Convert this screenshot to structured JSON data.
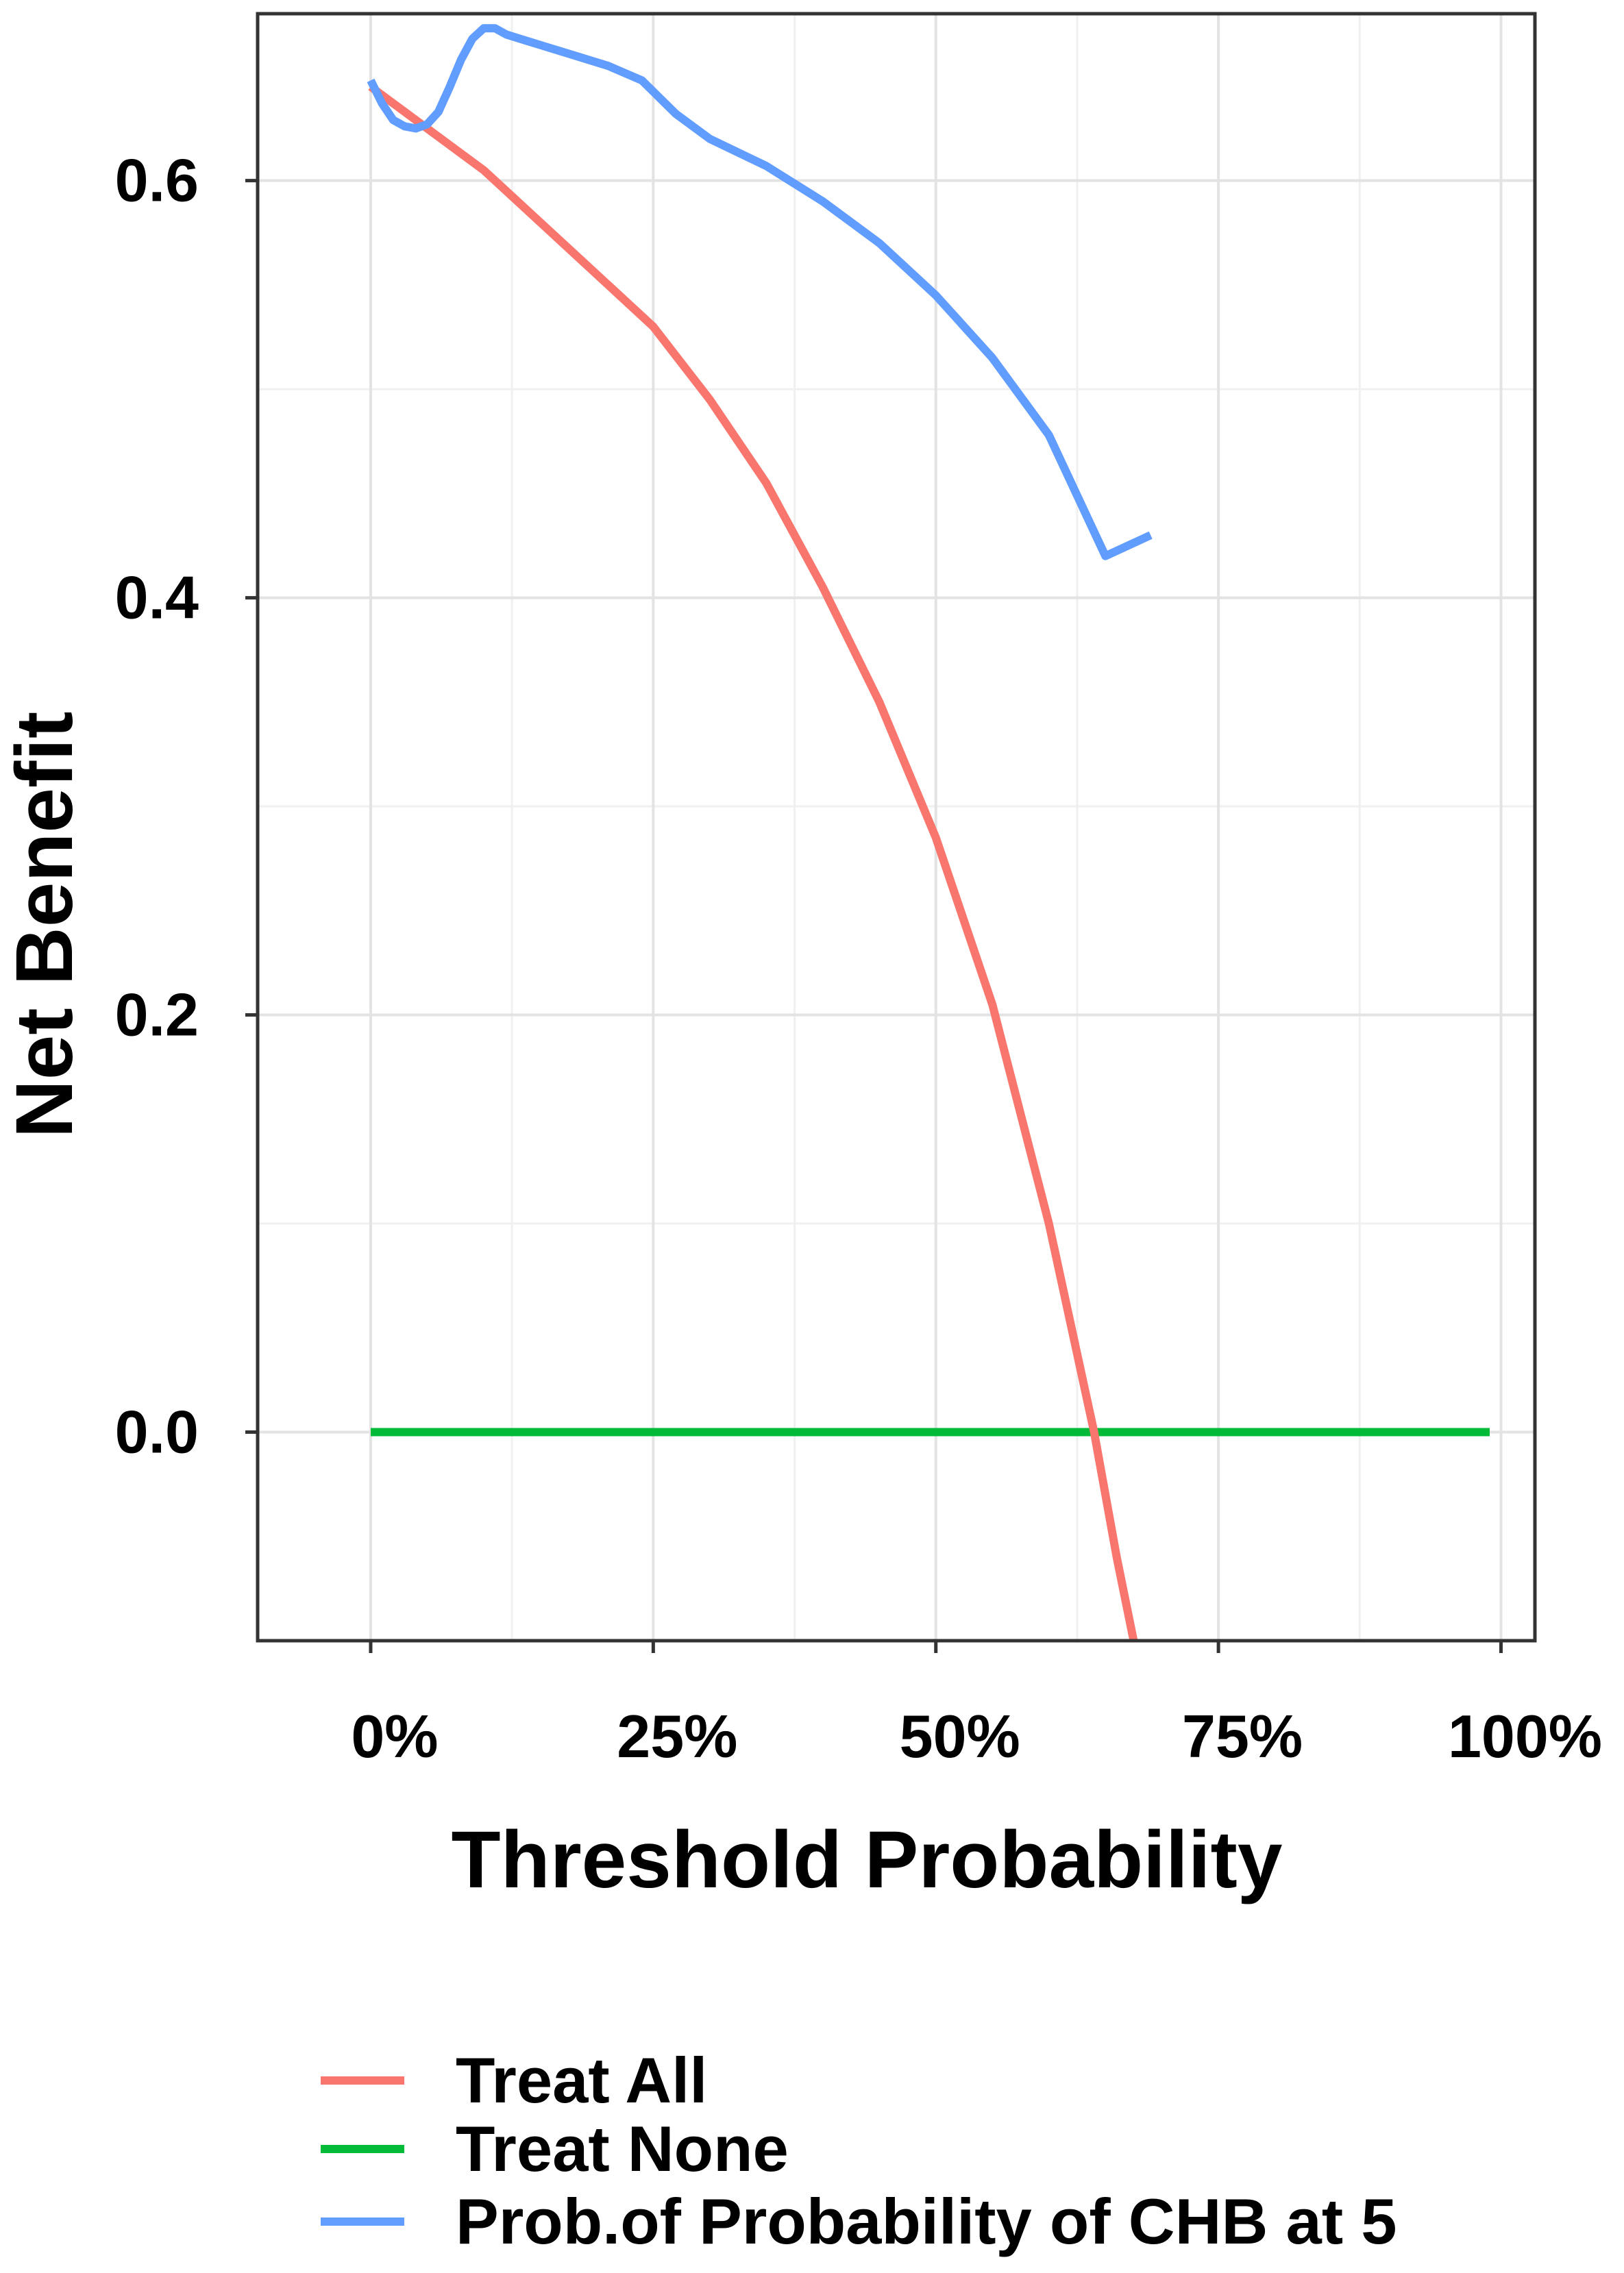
{
  "chart_data": {
    "type": "line",
    "xlabel": "Threshold Probability",
    "ylabel": "Net Benefit",
    "xlim": [
      -0.1,
      1.03
    ],
    "ylim": [
      -0.1,
      0.68
    ],
    "x_ticks": [
      0,
      0.25,
      0.5,
      0.75,
      1.0
    ],
    "x_tick_labels": [
      "0%",
      "25%",
      "50%",
      "75%",
      "100%"
    ],
    "y_ticks": [
      0.0,
      0.2,
      0.4,
      0.6
    ],
    "y_tick_labels": [
      "0.0",
      "0.2",
      "0.4",
      "0.6"
    ],
    "grid": true,
    "legend_position": "bottom",
    "series": [
      {
        "name": "Treat All",
        "color": "#F8766D",
        "x": [
          0,
          0.05,
          0.1,
          0.15,
          0.2,
          0.25,
          0.3,
          0.35,
          0.4,
          0.45,
          0.5,
          0.55,
          0.6,
          0.64,
          0.66,
          0.675
        ],
        "y": [
          0.645,
          0.625,
          0.605,
          0.58,
          0.555,
          0.53,
          0.495,
          0.455,
          0.405,
          0.35,
          0.285,
          0.205,
          0.1,
          0.0,
          -0.06,
          -0.1
        ]
      },
      {
        "name": "Treat None",
        "color": "#00BA38",
        "x": [
          0,
          0.99
        ],
        "y": [
          0,
          0
        ]
      },
      {
        "name": "Prob.of Probability of CHB at 5",
        "color": "#619CFF",
        "x": [
          0,
          0.01,
          0.02,
          0.03,
          0.04,
          0.05,
          0.06,
          0.07,
          0.08,
          0.09,
          0.1,
          0.11,
          0.12,
          0.15,
          0.18,
          0.21,
          0.24,
          0.27,
          0.3,
          0.35,
          0.4,
          0.45,
          0.5,
          0.55,
          0.6,
          0.65,
          0.69
        ],
        "y": [
          0.648,
          0.637,
          0.629,
          0.626,
          0.625,
          0.627,
          0.633,
          0.645,
          0.658,
          0.668,
          0.673,
          0.673,
          0.67,
          0.665,
          0.66,
          0.655,
          0.648,
          0.632,
          0.62,
          0.607,
          0.59,
          0.57,
          0.545,
          0.515,
          0.478,
          0.42,
          0.43
        ]
      }
    ]
  }
}
